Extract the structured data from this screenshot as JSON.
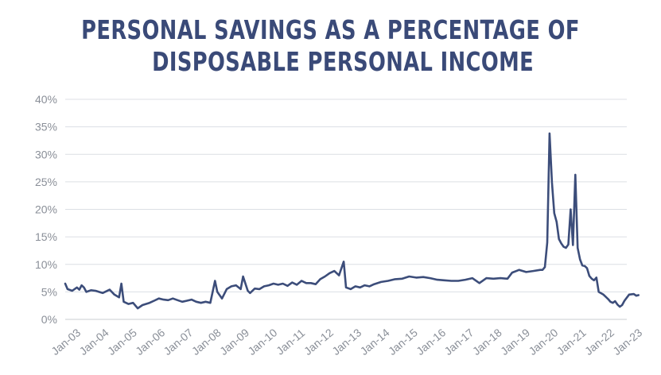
{
  "chart_data": {
    "type": "line",
    "title_lines": [
      "PERSONAL SAVINGS AS A PERCENTAGE OF",
      "DISPOSABLE PERSONAL INCOME"
    ],
    "xlabel": "",
    "ylabel": "",
    "ylim": [
      0,
      40
    ],
    "y_ticks": [
      0,
      5,
      10,
      15,
      20,
      25,
      30,
      35,
      40
    ],
    "y_tick_labels": [
      "0%",
      "5%",
      "10%",
      "15%",
      "20%",
      "25%",
      "30%",
      "35%",
      "40%"
    ],
    "x_tick_labels": [
      "Jan-03",
      "Jan-04",
      "Jan-05",
      "Jan-06",
      "Jan-07",
      "Jan-08",
      "Jan-09",
      "Jan-10",
      "Jan-11",
      "Jan-12",
      "Jan-13",
      "Jan-14",
      "Jan-15",
      "Jan-16",
      "Jan-17",
      "Jan-18",
      "Jan-19",
      "Jan-20",
      "Jan-21",
      "Jan-22",
      "Jan-23"
    ],
    "grid": "horizontal",
    "line_color": "#3c4d7a",
    "grid_color": "#dcdfe4",
    "series": [
      {
        "points": [
          [
            "2003-01",
            6.5
          ],
          [
            "2003-02",
            5.5
          ],
          [
            "2003-04",
            5.2
          ],
          [
            "2003-06",
            5.8
          ],
          [
            "2003-07",
            5.4
          ],
          [
            "2003-08",
            6.2
          ],
          [
            "2003-09",
            5.8
          ],
          [
            "2003-10",
            5.0
          ],
          [
            "2003-12",
            5.3
          ],
          [
            "2004-02",
            5.2
          ],
          [
            "2004-05",
            4.8
          ],
          [
            "2004-08",
            5.4
          ],
          [
            "2004-10",
            4.5
          ],
          [
            "2004-12",
            4.0
          ],
          [
            "2005-01",
            6.5
          ],
          [
            "2005-02",
            3.2
          ],
          [
            "2005-04",
            2.8
          ],
          [
            "2005-06",
            3.0
          ],
          [
            "2005-08",
            2.0
          ],
          [
            "2005-10",
            2.6
          ],
          [
            "2006-01",
            3.0
          ],
          [
            "2006-03",
            3.4
          ],
          [
            "2006-05",
            3.8
          ],
          [
            "2006-07",
            3.6
          ],
          [
            "2006-09",
            3.5
          ],
          [
            "2006-11",
            3.8
          ],
          [
            "2007-01",
            3.5
          ],
          [
            "2007-03",
            3.2
          ],
          [
            "2007-05",
            3.4
          ],
          [
            "2007-07",
            3.6
          ],
          [
            "2007-09",
            3.2
          ],
          [
            "2007-11",
            3.0
          ],
          [
            "2008-01",
            3.2
          ],
          [
            "2008-03",
            3.0
          ],
          [
            "2008-05",
            7.0
          ],
          [
            "2008-06",
            5.0
          ],
          [
            "2008-08",
            3.8
          ],
          [
            "2008-10",
            5.5
          ],
          [
            "2008-12",
            6.0
          ],
          [
            "2009-02",
            6.2
          ],
          [
            "2009-04",
            5.5
          ],
          [
            "2009-05",
            7.8
          ],
          [
            "2009-07",
            5.2
          ],
          [
            "2009-08",
            4.8
          ],
          [
            "2009-10",
            5.6
          ],
          [
            "2009-12",
            5.5
          ],
          [
            "2010-02",
            6.0
          ],
          [
            "2010-04",
            6.2
          ],
          [
            "2010-06",
            6.5
          ],
          [
            "2010-08",
            6.3
          ],
          [
            "2010-10",
            6.5
          ],
          [
            "2010-12",
            6.1
          ],
          [
            "2011-02",
            6.7
          ],
          [
            "2011-04",
            6.3
          ],
          [
            "2011-06",
            7.0
          ],
          [
            "2011-08",
            6.6
          ],
          [
            "2011-10",
            6.6
          ],
          [
            "2011-12",
            6.4
          ],
          [
            "2012-02",
            7.3
          ],
          [
            "2012-04",
            7.8
          ],
          [
            "2012-06",
            8.4
          ],
          [
            "2012-08",
            8.8
          ],
          [
            "2012-10",
            8.0
          ],
          [
            "2012-12",
            10.5
          ],
          [
            "2013-01",
            5.8
          ],
          [
            "2013-03",
            5.5
          ],
          [
            "2013-05",
            6.0
          ],
          [
            "2013-07",
            5.8
          ],
          [
            "2013-09",
            6.2
          ],
          [
            "2013-11",
            6.0
          ],
          [
            "2014-01",
            6.4
          ],
          [
            "2014-04",
            6.8
          ],
          [
            "2014-07",
            7.0
          ],
          [
            "2014-10",
            7.3
          ],
          [
            "2015-01",
            7.4
          ],
          [
            "2015-04",
            7.8
          ],
          [
            "2015-07",
            7.6
          ],
          [
            "2015-10",
            7.7
          ],
          [
            "2016-01",
            7.5
          ],
          [
            "2016-04",
            7.2
          ],
          [
            "2016-07",
            7.1
          ],
          [
            "2016-10",
            7.0
          ],
          [
            "2017-01",
            7.0
          ],
          [
            "2017-04",
            7.2
          ],
          [
            "2017-07",
            7.5
          ],
          [
            "2017-10",
            6.6
          ],
          [
            "2018-01",
            7.5
          ],
          [
            "2018-04",
            7.4
          ],
          [
            "2018-07",
            7.5
          ],
          [
            "2018-10",
            7.4
          ],
          [
            "2018-12",
            8.5
          ],
          [
            "2019-03",
            9.0
          ],
          [
            "2019-06",
            8.6
          ],
          [
            "2019-09",
            8.8
          ],
          [
            "2019-12",
            9.0
          ],
          [
            "2020-01",
            9.0
          ],
          [
            "2020-02",
            9.5
          ],
          [
            "2020-03",
            14.0
          ],
          [
            "2020-04",
            33.8
          ],
          [
            "2020-05",
            24.9
          ],
          [
            "2020-06",
            19.3
          ],
          [
            "2020-07",
            17.7
          ],
          [
            "2020-08",
            14.6
          ],
          [
            "2020-09",
            13.8
          ],
          [
            "2020-10",
            13.2
          ],
          [
            "2020-11",
            13.0
          ],
          [
            "2020-12",
            13.6
          ],
          [
            "2021-01",
            20.0
          ],
          [
            "2021-02",
            13.5
          ],
          [
            "2021-03",
            26.3
          ],
          [
            "2021-04",
            13.0
          ],
          [
            "2021-05",
            10.9
          ],
          [
            "2021-06",
            9.8
          ],
          [
            "2021-07",
            9.7
          ],
          [
            "2021-08",
            9.3
          ],
          [
            "2021-09",
            7.9
          ],
          [
            "2021-10",
            7.4
          ],
          [
            "2021-11",
            7.1
          ],
          [
            "2021-12",
            7.6
          ],
          [
            "2022-01",
            5.0
          ],
          [
            "2022-03",
            4.5
          ],
          [
            "2022-05",
            3.7
          ],
          [
            "2022-06",
            3.2
          ],
          [
            "2022-07",
            3.0
          ],
          [
            "2022-08",
            3.3
          ],
          [
            "2022-09",
            2.7
          ],
          [
            "2022-10",
            2.3
          ],
          [
            "2022-11",
            2.6
          ],
          [
            "2022-12",
            3.4
          ],
          [
            "2023-02",
            4.5
          ],
          [
            "2023-04",
            4.6
          ],
          [
            "2023-05",
            4.3
          ],
          [
            "2023-06",
            4.4
          ]
        ]
      }
    ]
  }
}
